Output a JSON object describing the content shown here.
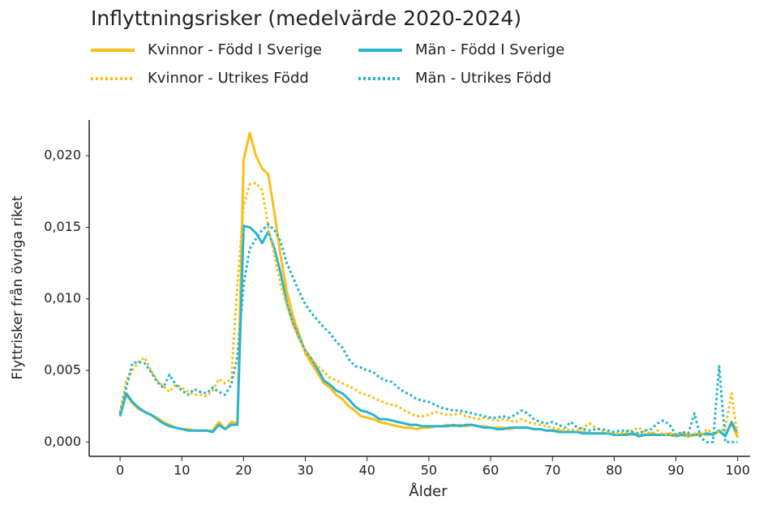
{
  "chart_data": {
    "type": "line",
    "title": "Inflyttningsrisker (medelvärde 2020-2024)",
    "x_label": "Ålder",
    "y_label": "Flyttrisker från övriga riket",
    "x": [
      0,
      1,
      2,
      3,
      4,
      5,
      6,
      7,
      8,
      9,
      10,
      11,
      12,
      13,
      14,
      15,
      16,
      17,
      18,
      19,
      20,
      21,
      22,
      23,
      24,
      25,
      26,
      27,
      28,
      29,
      30,
      31,
      32,
      33,
      34,
      35,
      36,
      37,
      38,
      39,
      40,
      41,
      42,
      43,
      44,
      45,
      46,
      47,
      48,
      49,
      50,
      51,
      52,
      53,
      54,
      55,
      56,
      57,
      58,
      59,
      60,
      61,
      62,
      63,
      64,
      65,
      66,
      67,
      68,
      69,
      70,
      71,
      72,
      73,
      74,
      75,
      76,
      77,
      78,
      79,
      80,
      81,
      82,
      83,
      84,
      85,
      86,
      87,
      88,
      89,
      90,
      91,
      92,
      93,
      94,
      95,
      96,
      97,
      98,
      99,
      100
    ],
    "xlim": [
      -5,
      102
    ],
    "xticks": [
      0,
      10,
      20,
      30,
      40,
      50,
      60,
      70,
      80,
      90,
      100
    ],
    "ylim": [
      -0.001,
      0.0225
    ],
    "yticks": [
      {
        "value": 0,
        "label": "0,000"
      },
      {
        "value": 0.005,
        "label": "0,005"
      },
      {
        "value": 0.01,
        "label": "0,010"
      },
      {
        "value": 0.015,
        "label": "0,015"
      },
      {
        "value": 0.02,
        "label": "0,020"
      }
    ],
    "grid": false,
    "legend": "top-left",
    "series": [
      {
        "name": "Kvinnor - Född I Sverige",
        "color": "#fbbf18",
        "style": "solid",
        "values": [
          0.0019,
          0.0033,
          0.0027,
          0.0023,
          0.0021,
          0.0019,
          0.0017,
          0.0014,
          0.0012,
          0.001,
          0.0009,
          0.0009,
          0.0008,
          0.0008,
          0.0008,
          0.0008,
          0.0014,
          0.0009,
          0.0014,
          0.0013,
          0.0197,
          0.0216,
          0.02,
          0.0191,
          0.0187,
          0.016,
          0.013,
          0.0105,
          0.0088,
          0.0075,
          0.0062,
          0.0055,
          0.0048,
          0.0041,
          0.0038,
          0.0033,
          0.003,
          0.0025,
          0.0022,
          0.0018,
          0.0017,
          0.0016,
          0.0014,
          0.0013,
          0.0012,
          0.0011,
          0.001,
          0.001,
          0.0009,
          0.001,
          0.001,
          0.0011,
          0.0011,
          0.0012,
          0.0011,
          0.0012,
          0.0011,
          0.0012,
          0.0011,
          0.0011,
          0.001,
          0.001,
          0.001,
          0.0009,
          0.001,
          0.001,
          0.001,
          0.0009,
          0.0009,
          0.0008,
          0.0008,
          0.0008,
          0.0007,
          0.0007,
          0.0007,
          0.0007,
          0.0006,
          0.0006,
          0.0006,
          0.0006,
          0.0005,
          0.0005,
          0.0006,
          0.0005,
          0.0005,
          0.0005,
          0.0006,
          0.0005,
          0.0005,
          0.0006,
          0.0005,
          0.0006,
          0.0005,
          0.0005,
          0.0006,
          0.0005,
          0.0006,
          0.0007,
          0.0005,
          0.0013,
          0.0003
        ]
      },
      {
        "name": "Män - Född I Sverige",
        "color": "#29b5d0",
        "style": "solid",
        "values": [
          0.0018,
          0.0034,
          0.0028,
          0.0024,
          0.0021,
          0.0019,
          0.0016,
          0.0013,
          0.0011,
          0.001,
          0.0009,
          0.0008,
          0.0008,
          0.0008,
          0.0008,
          0.0007,
          0.0012,
          0.0009,
          0.0012,
          0.0012,
          0.0151,
          0.015,
          0.0146,
          0.0139,
          0.0147,
          0.0135,
          0.0118,
          0.0097,
          0.0083,
          0.0073,
          0.0064,
          0.0058,
          0.0051,
          0.0043,
          0.004,
          0.0036,
          0.0034,
          0.003,
          0.0025,
          0.0022,
          0.0021,
          0.0019,
          0.0016,
          0.0016,
          0.0015,
          0.0014,
          0.0013,
          0.0012,
          0.0012,
          0.0011,
          0.0011,
          0.0011,
          0.0011,
          0.0011,
          0.0012,
          0.0011,
          0.0012,
          0.0012,
          0.0011,
          0.001,
          0.001,
          0.0009,
          0.0009,
          0.001,
          0.001,
          0.001,
          0.001,
          0.0009,
          0.0009,
          0.0008,
          0.0008,
          0.0007,
          0.0007,
          0.0007,
          0.0007,
          0.0006,
          0.0006,
          0.0006,
          0.0006,
          0.0006,
          0.0005,
          0.0005,
          0.0005,
          0.0006,
          0.0004,
          0.0005,
          0.0005,
          0.0005,
          0.0005,
          0.0005,
          0.0004,
          0.0005,
          0.0004,
          0.0005,
          0.0005,
          0.0006,
          0.0005,
          0.0008,
          0.0004,
          0.0014,
          0.0006
        ]
      },
      {
        "name": "Kvinnor - Utrikes Född",
        "color": "#fbbf18",
        "style": "dotted",
        "values": [
          0.0021,
          0.0043,
          0.005,
          0.0056,
          0.0059,
          0.005,
          0.0043,
          0.0039,
          0.0035,
          0.004,
          0.0038,
          0.0035,
          0.0033,
          0.0033,
          0.0032,
          0.0036,
          0.0044,
          0.0041,
          0.0044,
          0.011,
          0.0165,
          0.018,
          0.0181,
          0.0176,
          0.015,
          0.013,
          0.011,
          0.0095,
          0.0082,
          0.0072,
          0.0064,
          0.0058,
          0.0053,
          0.0049,
          0.0045,
          0.0043,
          0.0041,
          0.0039,
          0.0037,
          0.0034,
          0.0033,
          0.0031,
          0.0029,
          0.0027,
          0.0026,
          0.0025,
          0.0022,
          0.002,
          0.0018,
          0.0018,
          0.0019,
          0.0021,
          0.002,
          0.0019,
          0.0019,
          0.002,
          0.0018,
          0.0017,
          0.0016,
          0.0017,
          0.0016,
          0.0015,
          0.0016,
          0.0015,
          0.0014,
          0.0016,
          0.0014,
          0.0013,
          0.0012,
          0.0011,
          0.001,
          0.0009,
          0.0008,
          0.0009,
          0.0008,
          0.001,
          0.0013,
          0.001,
          0.0008,
          0.0007,
          0.0006,
          0.0006,
          0.0007,
          0.0008,
          0.001,
          0.0007,
          0.0006,
          0.0008,
          0.0005,
          0.0006,
          0.0004,
          0.0007,
          0.0003,
          0.0006,
          0.0004,
          0.0009,
          0.0006,
          0.0007,
          0.001,
          0.0034,
          0.0003
        ]
      },
      {
        "name": "Män - Utrikes Född",
        "color": "#29b5d0",
        "style": "dotted",
        "values": [
          0.002,
          0.0038,
          0.0055,
          0.0056,
          0.0055,
          0.0049,
          0.0042,
          0.0038,
          0.0047,
          0.004,
          0.0036,
          0.0033,
          0.0037,
          0.0035,
          0.0034,
          0.0038,
          0.0035,
          0.0033,
          0.004,
          0.006,
          0.011,
          0.0135,
          0.0142,
          0.0148,
          0.0152,
          0.0148,
          0.014,
          0.0125,
          0.0115,
          0.0105,
          0.0096,
          0.009,
          0.0085,
          0.008,
          0.0076,
          0.007,
          0.0066,
          0.0058,
          0.0053,
          0.0052,
          0.005,
          0.0049,
          0.0045,
          0.0043,
          0.0042,
          0.0038,
          0.0035,
          0.0033,
          0.003,
          0.0029,
          0.0028,
          0.0026,
          0.0024,
          0.0023,
          0.0022,
          0.0022,
          0.0021,
          0.002,
          0.0019,
          0.0018,
          0.0017,
          0.0017,
          0.0018,
          0.0017,
          0.0019,
          0.0022,
          0.002,
          0.0016,
          0.0014,
          0.0013,
          0.0014,
          0.0012,
          0.001,
          0.0014,
          0.001,
          0.0009,
          0.0008,
          0.0009,
          0.0009,
          0.0008,
          0.0007,
          0.0008,
          0.0008,
          0.0007,
          0.0006,
          0.0008,
          0.0009,
          0.0013,
          0.0015,
          0.0012,
          0.0005,
          0.0007,
          0.0006,
          0.002,
          0.0003,
          0,
          0,
          0.0053,
          0,
          0,
          0
        ]
      }
    ]
  }
}
